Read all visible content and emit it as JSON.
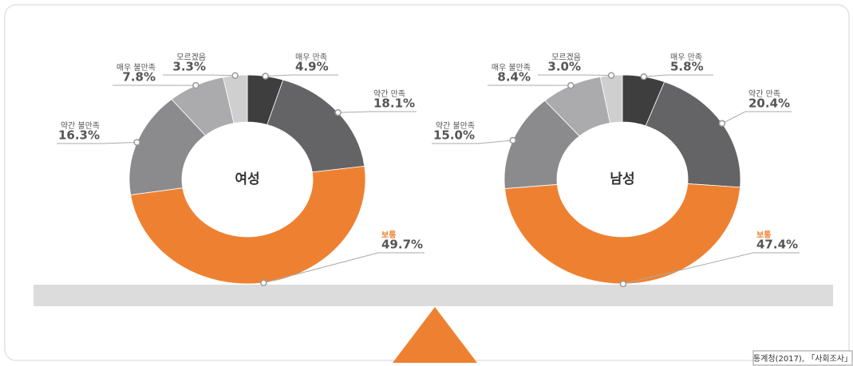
{
  "chart_data": [
    {
      "type": "pie",
      "center_label": "여성",
      "categories": [
        "매우 만족",
        "약간 만족",
        "보통",
        "약간 불만족",
        "매우 불만족",
        "모르겠음"
      ],
      "values": [
        4.9,
        18.1,
        49.7,
        16.3,
        7.8,
        3.3
      ],
      "value_labels": [
        "4.9%",
        "18.1%",
        "49.7%",
        "16.3%",
        "7.8%",
        "3.3%"
      ],
      "colors": [
        "#3e3e3e",
        "#646466",
        "#ee8131",
        "#8b8b8d",
        "#ababad",
        "#cfcfd0"
      ]
    },
    {
      "type": "pie",
      "center_label": "남성",
      "categories": [
        "매우 만족",
        "약간 만족",
        "보통",
        "약간 불만족",
        "매우 불만족",
        "모르겠음"
      ],
      "values": [
        5.8,
        20.4,
        47.4,
        15.0,
        8.4,
        3.0
      ],
      "value_labels": [
        "5.8%",
        "20.4%",
        "47.4%",
        "15.0%",
        "8.4%",
        "3.0%"
      ],
      "colors": [
        "#3e3e3e",
        "#646466",
        "#ee8131",
        "#8b8b8d",
        "#ababad",
        "#cfcfd0"
      ]
    }
  ],
  "source": "통계청(2017), 「사회조사」"
}
